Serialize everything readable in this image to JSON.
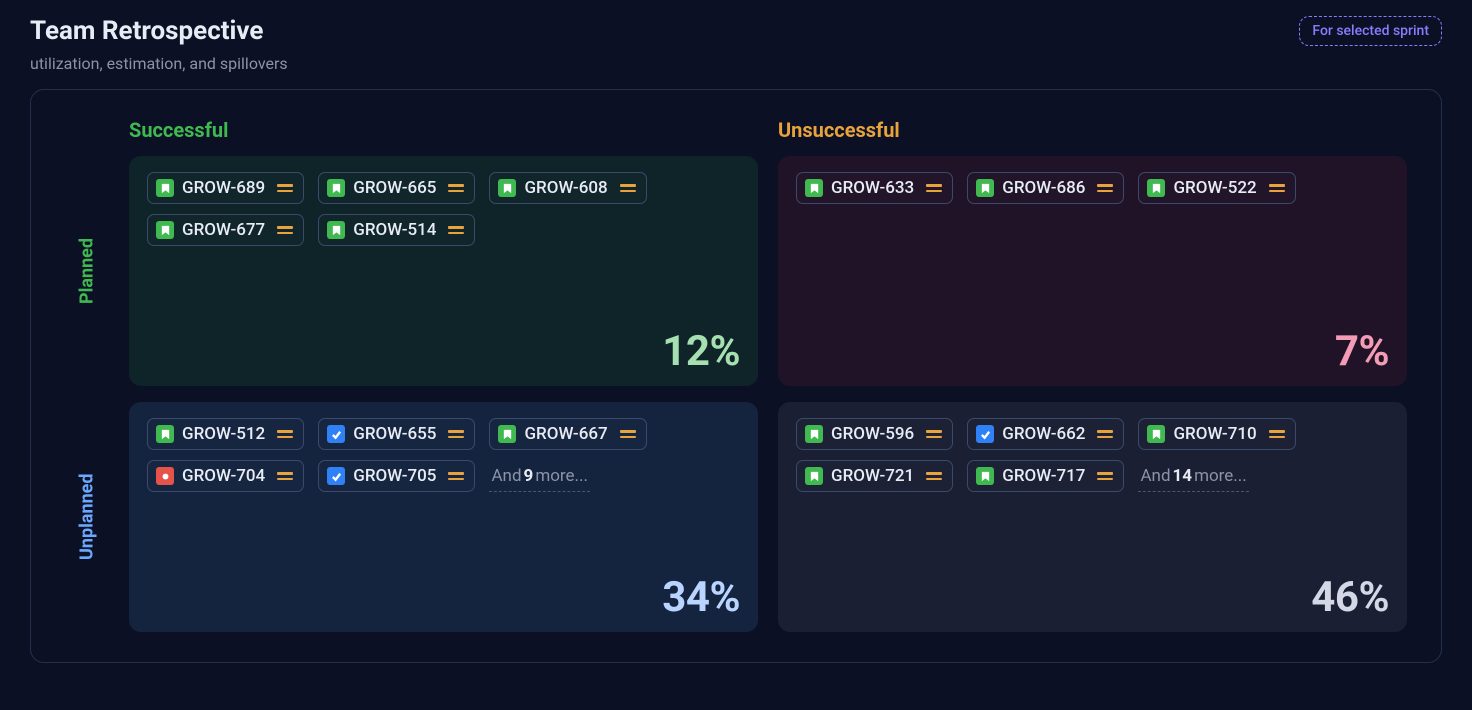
{
  "header": {
    "title": "Team Retrospective",
    "subtitle": "utilization, estimation, and spillovers",
    "scope_label": "For selected sprint"
  },
  "columns": {
    "successful": "Successful",
    "unsuccessful": "Unsuccessful"
  },
  "rows": {
    "planned": "Planned",
    "unplanned": "Unplanned"
  },
  "colors": {
    "background": "#0c1024",
    "green": "#3fb950",
    "orange": "#e8a33d",
    "blue": "#6aa9ff",
    "pink": "#f49cb5",
    "violet": "#8b7cff",
    "quadrants": {
      "planned_successful": "#0e2429",
      "planned_unsuccessful": "#211327",
      "unplanned_successful": "#15243e",
      "unplanned_unsuccessful": "#1b1f33"
    },
    "chip_border": "#3a4a6b",
    "issue_types": {
      "story": "#3fb950",
      "task": "#2f81f7",
      "bug": "#e5534b"
    }
  },
  "quadrants": {
    "planned_successful": {
      "pct": "12%",
      "pct_color": "#a7e0b0",
      "items": [
        {
          "key": "GROW-689",
          "type": "story",
          "priority": "medium"
        },
        {
          "key": "GROW-665",
          "type": "story",
          "priority": "medium"
        },
        {
          "key": "GROW-608",
          "type": "story",
          "priority": "medium"
        },
        {
          "key": "GROW-677",
          "type": "story",
          "priority": "medium"
        },
        {
          "key": "GROW-514",
          "type": "story",
          "priority": "medium"
        }
      ],
      "more": null
    },
    "planned_unsuccessful": {
      "pct": "7%",
      "pct_color": "#f49cb5",
      "items": [
        {
          "key": "GROW-633",
          "type": "story",
          "priority": "medium"
        },
        {
          "key": "GROW-686",
          "type": "story",
          "priority": "medium"
        },
        {
          "key": "GROW-522",
          "type": "story",
          "priority": "medium"
        }
      ],
      "more": null
    },
    "unplanned_successful": {
      "pct": "34%",
      "pct_color": "#b9d4ff",
      "items": [
        {
          "key": "GROW-512",
          "type": "story",
          "priority": "medium"
        },
        {
          "key": "GROW-655",
          "type": "task",
          "priority": "medium"
        },
        {
          "key": "GROW-667",
          "type": "story",
          "priority": "medium"
        },
        {
          "key": "GROW-704",
          "type": "bug",
          "priority": "medium"
        },
        {
          "key": "GROW-705",
          "type": "task",
          "priority": "medium"
        }
      ],
      "more": {
        "prefix": "And ",
        "count": "9",
        "suffix": " more..."
      }
    },
    "unplanned_unsuccessful": {
      "pct": "46%",
      "pct_color": "#d4d8e6",
      "items": [
        {
          "key": "GROW-596",
          "type": "story",
          "priority": "medium"
        },
        {
          "key": "GROW-662",
          "type": "task",
          "priority": "medium"
        },
        {
          "key": "GROW-710",
          "type": "story",
          "priority": "medium"
        },
        {
          "key": "GROW-721",
          "type": "story",
          "priority": "medium"
        },
        {
          "key": "GROW-717",
          "type": "story",
          "priority": "medium"
        }
      ],
      "more": {
        "prefix": "And ",
        "count": "14",
        "suffix": " more..."
      }
    }
  }
}
